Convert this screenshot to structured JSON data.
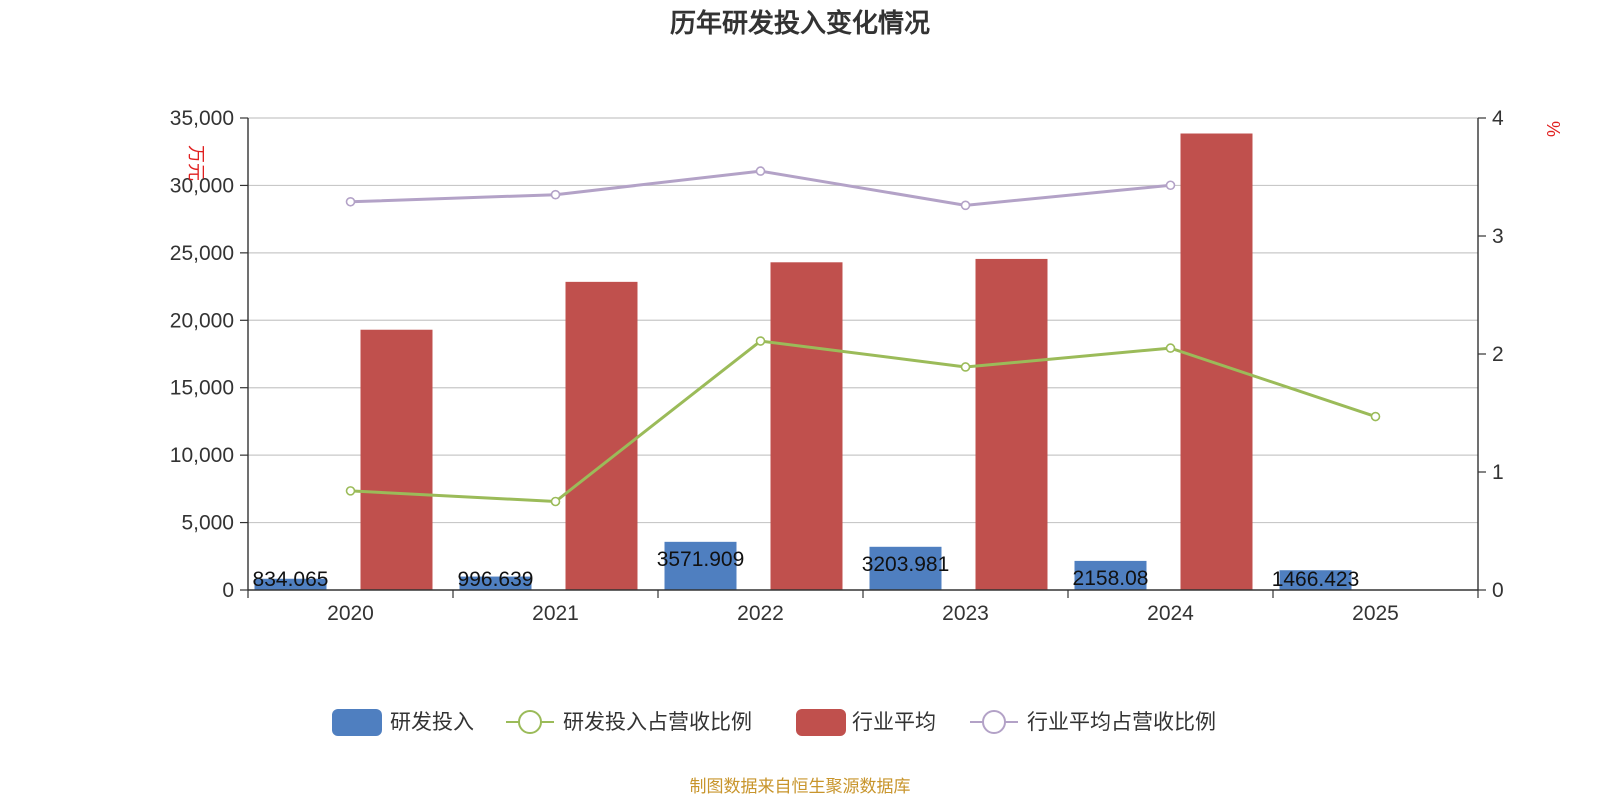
{
  "chart_data": {
    "type": "bar",
    "title": "历年研发投入变化情况",
    "categories": [
      "2020",
      "2021",
      "2022",
      "2023",
      "2024",
      "2025"
    ],
    "y_left": {
      "unit": "万元",
      "min": 0,
      "max": 35000,
      "ticks": [
        "0",
        "5,000",
        "10,000",
        "15,000",
        "20,000",
        "25,000",
        "30,000",
        "35,000"
      ]
    },
    "y_right": {
      "unit": "%",
      "min": 0,
      "max": 4,
      "ticks": [
        "0",
        "1",
        "2",
        "3",
        "4"
      ]
    },
    "grid": true,
    "legend_position": "bottom",
    "series": [
      {
        "name": "研发投入",
        "kind": "bar",
        "axis": "left",
        "color": "#4f7fc0",
        "values": [
          834.065,
          996.639,
          3571.909,
          3203.981,
          2158.08,
          1466.423
        ],
        "labels": [
          "834.065",
          "996.639",
          "3571.909",
          "3203.981",
          "2158.08",
          "1466.423"
        ]
      },
      {
        "name": "研发投入占营收比例",
        "kind": "line",
        "axis": "right",
        "color": "#9bbb59",
        "values": [
          0.84,
          0.75,
          2.11,
          1.89,
          2.05,
          1.47
        ]
      },
      {
        "name": "行业平均",
        "kind": "bar",
        "axis": "left",
        "color": "#c0504d",
        "values": [
          19300,
          22850,
          24300,
          24550,
          33850,
          null
        ]
      },
      {
        "name": "行业平均占营收比例",
        "kind": "line",
        "axis": "right",
        "color": "#b3a2c7",
        "values": [
          3.29,
          3.35,
          3.55,
          3.26,
          3.43,
          null
        ]
      }
    ]
  },
  "source": "制图数据来自恒生聚源数据库"
}
